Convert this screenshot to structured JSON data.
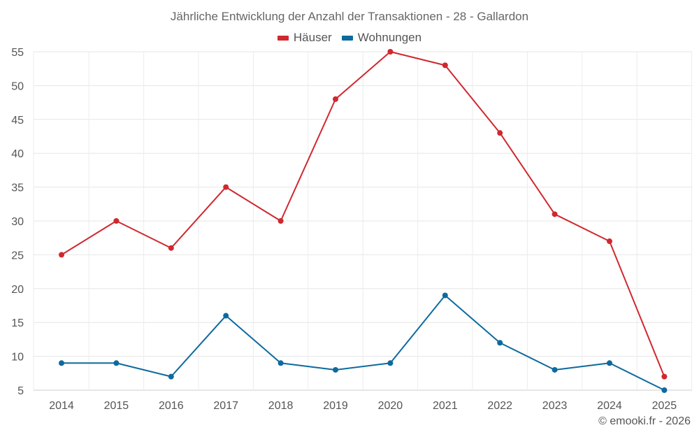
{
  "chart_data": {
    "type": "line",
    "title": "Jährliche Entwicklung der Anzahl der Transaktionen - 28 - Gallardon",
    "categories": [
      "2014",
      "2015",
      "2016",
      "2017",
      "2018",
      "2019",
      "2020",
      "2021",
      "2022",
      "2023",
      "2024",
      "2025"
    ],
    "series": [
      {
        "name": "Häuser",
        "color": "#d0282e",
        "values": [
          25,
          30,
          26,
          35,
          30,
          48,
          55,
          53,
          43,
          31,
          27,
          7
        ]
      },
      {
        "name": "Wohnungen",
        "color": "#0d6a9e",
        "values": [
          9,
          9,
          7,
          16,
          9,
          8,
          9,
          19,
          12,
          8,
          9,
          5
        ]
      }
    ],
    "ylim": [
      5,
      55
    ],
    "yticks": [
      5,
      10,
      15,
      20,
      25,
      30,
      35,
      40,
      45,
      50,
      55
    ],
    "grid": true,
    "legend_position": "top-center",
    "xlabel": "",
    "ylabel": ""
  },
  "footer": {
    "credit": "© emooki.fr - 2026"
  }
}
